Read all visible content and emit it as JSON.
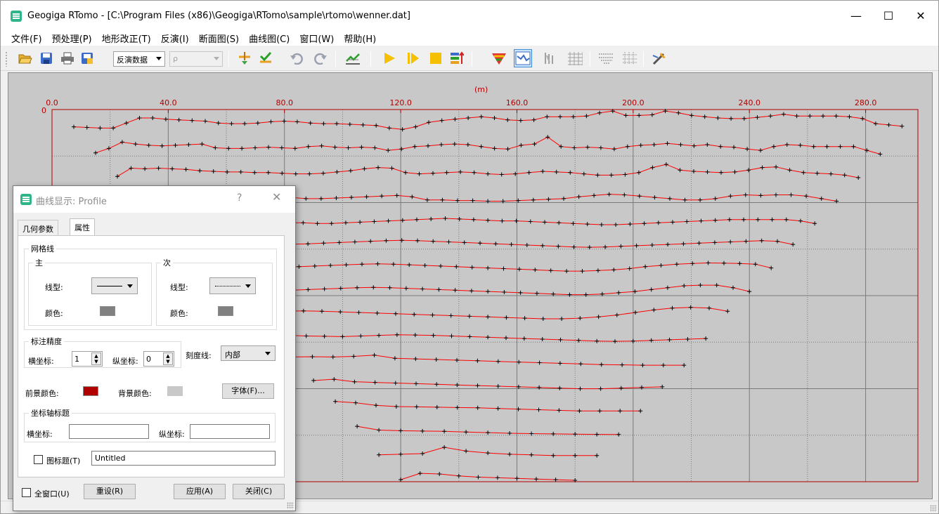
{
  "window": {
    "title": "Geogiga RTomo - [C:\\Program Files (x86)\\Geogiga\\RTomo\\sample\\rtomo\\wenner.dat]"
  },
  "menu": [
    "文件(F)",
    "预处理(P)",
    "地形改正(T)",
    "反演(I)",
    "断面图(S)",
    "曲线图(C)",
    "窗口(W)",
    "帮助(H)"
  ],
  "toolbar": {
    "data_combo": "反演数据",
    "rho_combo": "ρ",
    "icons": [
      "open-icon",
      "save-icon",
      "print-icon",
      "export-icon",
      "filter-icon",
      "check-icon",
      "undo-icon",
      "redo-icon",
      "profile-edit-icon",
      "play-icon",
      "step-icon",
      "stop-icon",
      "sort-icon",
      "topo-icon",
      "curve-icon",
      "section-icon",
      "grid-icon",
      "model-icon",
      "mesh-icon",
      "tool-icon"
    ]
  },
  "chart": {
    "axis_unit": "(m)",
    "x_ticks": [
      "0.0",
      "40.0",
      "80.0",
      "120.0",
      "160.0",
      "200.0",
      "240.0",
      "280.0"
    ],
    "y_tick": "0",
    "x_range": [
      0,
      298
    ],
    "line_color": "#ff0000",
    "frame_color": "#b00000",
    "background_color": "#c8c8c8",
    "marker": "+"
  },
  "chart_data": {
    "type": "line",
    "title": "",
    "xlabel": "(m)",
    "ylabel": "",
    "xlim": [
      0,
      298
    ],
    "series": [
      {
        "x_start": 7.5,
        "x_end": 292.5,
        "values": [
          0.3,
          0.25,
          0.2,
          0.2,
          0.6,
          1.0,
          1.0,
          0.9,
          0.85,
          0.8,
          0.75,
          0.6,
          0.55,
          0.55,
          0.6,
          0.7,
          0.75,
          0.7,
          0.6,
          0.55,
          0.55,
          0.5,
          0.45,
          0.4,
          0.2,
          0.1,
          0.3,
          0.65,
          0.8,
          0.9,
          1.0,
          1.1,
          1.0,
          0.85,
          0.8,
          0.85,
          1.1,
          1.1,
          1.1,
          1.15,
          1.4,
          1.55,
          1.2,
          1.2,
          1.25,
          1.55,
          1.4,
          1.2,
          1.1,
          1.0,
          0.95,
          0.95,
          1.05,
          1.15,
          1.3,
          1.15,
          1.15,
          1.15,
          1.15,
          1.1,
          0.95,
          0.55,
          0.45,
          0.35
        ]
      },
      {
        "x_start": 15.0,
        "x_end": 285.0,
        "values": [
          0.1,
          0.45,
          0.95,
          0.8,
          0.7,
          0.65,
          0.7,
          0.75,
          0.8,
          0.5,
          0.45,
          0.45,
          0.5,
          0.55,
          0.5,
          0.45,
          0.6,
          0.65,
          0.55,
          0.5,
          0.55,
          0.5,
          0.3,
          0.4,
          0.6,
          0.65,
          0.75,
          0.8,
          0.75,
          0.6,
          0.45,
          0.4,
          0.7,
          0.8,
          1.35,
          0.6,
          0.5,
          0.55,
          0.5,
          0.4,
          0.6,
          0.7,
          0.75,
          0.85,
          0.75,
          0.65,
          0.75,
          0.6,
          0.55,
          0.4,
          0.3,
          0.6,
          0.75,
          0.7,
          0.6,
          0.6,
          0.6,
          0.6,
          0.3,
          0.0
        ]
      },
      {
        "x_start": 22.5,
        "x_end": 277.5,
        "values": [
          0.1,
          0.75,
          0.7,
          0.75,
          0.7,
          0.65,
          0.55,
          0.5,
          0.45,
          0.45,
          0.4,
          0.4,
          0.35,
          0.3,
          0.3,
          0.35,
          0.45,
          0.55,
          0.7,
          0.8,
          0.75,
          0.4,
          0.3,
          0.35,
          0.4,
          0.45,
          0.4,
          0.3,
          0.25,
          0.3,
          0.4,
          0.5,
          0.45,
          0.4,
          0.3,
          0.2,
          0.2,
          0.25,
          0.4,
          0.8,
          1.05,
          0.6,
          0.5,
          0.45,
          0.4,
          0.45,
          0.6,
          0.8,
          0.85,
          0.6,
          0.4,
          0.35,
          0.3,
          0.2,
          0.0
        ]
      },
      {
        "x_start": 30.0,
        "x_end": 270.0,
        "values": [
          0.75,
          0.6,
          0.55,
          0.55,
          0.5,
          0.45,
          0.4,
          0.4,
          0.35,
          0.3,
          0.3,
          0.2,
          0.2,
          0.25,
          0.3,
          0.35,
          0.4,
          0.45,
          0.35,
          0.1,
          0.1,
          0.05,
          0.05,
          0.0,
          0.0,
          0.05,
          0.1,
          0.15,
          0.2,
          0.35,
          0.45,
          0.55,
          0.5,
          0.4,
          0.3,
          0.2,
          0.1,
          0.1,
          0.2,
          0.4,
          0.5,
          0.45,
          0.5,
          0.5,
          0.4,
          0.2,
          0.0
        ]
      },
      {
        "x_start": 37.5,
        "x_end": 262.5,
        "values": [
          0.5,
          0.45,
          0.4,
          0.35,
          0.3,
          0.25,
          0.25,
          0.2,
          0.2,
          0.15,
          0.15,
          0.1,
          0.1,
          0.15,
          0.2,
          0.25,
          0.3,
          0.35,
          0.4,
          0.45,
          0.5,
          0.45,
          0.4,
          0.35,
          0.3,
          0.3,
          0.25,
          0.2,
          0.15,
          0.1,
          0.05,
          0.0,
          0.0,
          0.05,
          0.1,
          0.15,
          0.2,
          0.25,
          0.3,
          0.35,
          0.4,
          0.4,
          0.4,
          0.4,
          0.4,
          0.3,
          0.1
        ]
      },
      {
        "x_start": 45.0,
        "x_end": 255.0,
        "values": [
          0.4,
          0.38,
          0.35,
          0.32,
          0.3,
          0.28,
          0.3,
          0.32,
          0.35,
          0.4,
          0.45,
          0.5,
          0.55,
          0.6,
          0.62,
          0.6,
          0.55,
          0.5,
          0.45,
          0.4,
          0.35,
          0.3,
          0.25,
          0.2,
          0.15,
          0.1,
          0.08,
          0.1,
          0.15,
          0.2,
          0.25,
          0.3,
          0.35,
          0.4,
          0.45,
          0.5,
          0.55,
          0.6,
          0.55,
          0.3
        ]
      },
      {
        "x_start": 52.5,
        "x_end": 247.5,
        "values": [
          0.5,
          0.45,
          0.4,
          0.35,
          0.3,
          0.35,
          0.4,
          0.45,
          0.5,
          0.55,
          0.6,
          0.62,
          0.6,
          0.55,
          0.5,
          0.45,
          0.4,
          0.35,
          0.3,
          0.25,
          0.2,
          0.15,
          0.1,
          0.05,
          0.05,
          0.1,
          0.15,
          0.25,
          0.4,
          0.5,
          0.6,
          0.65,
          0.7,
          0.68,
          0.65,
          0.6,
          0.3
        ]
      },
      {
        "x_start": 60.0,
        "x_end": 240.0,
        "values": [
          0.6,
          0.55,
          0.5,
          0.45,
          0.4,
          0.45,
          0.5,
          0.55,
          0.6,
          0.62,
          0.6,
          0.55,
          0.5,
          0.45,
          0.4,
          0.35,
          0.3,
          0.25,
          0.2,
          0.15,
          0.1,
          0.05,
          0.05,
          0.1,
          0.2,
          0.3,
          0.45,
          0.6,
          0.75,
          0.8,
          0.8,
          0.6,
          0.3
        ]
      },
      {
        "x_start": 67.5,
        "x_end": 232.5,
        "values": [
          0.5,
          0.55,
          0.6,
          0.62,
          0.6,
          0.55,
          0.5,
          0.45,
          0.4,
          0.35,
          0.3,
          0.25,
          0.2,
          0.15,
          0.1,
          0.05,
          0.0,
          0.0,
          0.05,
          0.15,
          0.3,
          0.5,
          0.7,
          0.85,
          0.9,
          0.85,
          0.6
        ]
      },
      {
        "x_start": 75.0,
        "x_end": 225.0,
        "values": [
          0.6,
          0.55,
          0.5,
          0.48,
          0.45,
          0.5,
          0.55,
          0.6,
          0.58,
          0.55,
          0.5,
          0.45,
          0.4,
          0.35,
          0.3,
          0.25,
          0.2,
          0.15,
          0.1,
          0.08,
          0.1,
          0.15,
          0.2,
          0.25,
          0.3
        ]
      },
      {
        "x_start": 82.5,
        "x_end": 217.5,
        "values": [
          0.7,
          0.72,
          0.7,
          0.75,
          0.85,
          0.6,
          0.55,
          0.5,
          0.45,
          0.4,
          0.35,
          0.3,
          0.25,
          0.2,
          0.15,
          0.1,
          0.08,
          0.05,
          0.05,
          0.05
        ]
      },
      {
        "x_start": 90.0,
        "x_end": 210.0,
        "values": [
          0.7,
          0.8,
          0.6,
          0.55,
          0.5,
          0.45,
          0.4,
          0.35,
          0.3,
          0.25,
          0.2,
          0.15,
          0.1,
          0.05,
          0.05,
          0.1,
          0.15,
          0.2
        ]
      },
      {
        "x_start": 97.5,
        "x_end": 202.5,
        "values": [
          0.9,
          0.8,
          0.6,
          0.5,
          0.48,
          0.45,
          0.42,
          0.4,
          0.35,
          0.3,
          0.25,
          0.2,
          0.15,
          0.15,
          0.15,
          0.15
        ]
      },
      {
        "x_start": 105.0,
        "x_end": 195.0,
        "values": [
          0.8,
          0.5,
          0.45,
          0.42,
          0.4,
          0.35,
          0.3,
          0.25,
          0.22,
          0.2,
          0.18,
          0.16,
          0.15
        ]
      },
      {
        "x_start": 112.5,
        "x_end": 187.5,
        "values": [
          0.4,
          0.45,
          0.5,
          1.0,
          0.7,
          0.55,
          0.45,
          0.4,
          0.35,
          0.35,
          0.35
        ]
      },
      {
        "x_start": 120.0,
        "x_end": 180.0,
        "values": [
          0.3,
          0.8,
          0.75,
          0.6,
          0.5,
          0.45,
          0.4,
          0.35,
          0.3,
          0.25
        ]
      }
    ]
  },
  "dialog": {
    "title": "曲线显示: Profile",
    "help": "?",
    "close": "✕",
    "tabs": [
      "几何参数",
      "属性"
    ],
    "grid_group": "网格线",
    "major_group": "主",
    "minor_group": "次",
    "line_type_label": "线型:",
    "color_label": "颜色:",
    "major_color": "#808080",
    "minor_color": "#808080",
    "precision_group": "标注精度",
    "x_label": "横坐标:",
    "y_label": "纵坐标:",
    "x_precision": "1",
    "y_precision": "0",
    "tick_label": "刻度线:",
    "tick_value": "内部",
    "fg_label": "前景颜色:",
    "fg_color": "#b00000",
    "bg_label": "背景颜色:",
    "bg_color": "#c8c8c8",
    "font_button": "字体(F)...",
    "axis_title_group": "坐标轴标题",
    "x_title_label": "横坐标:",
    "y_title_label": "纵坐标:",
    "x_title_value": "",
    "y_title_value": "",
    "chart_title_label": "图标题(T)",
    "chart_title_value": "Untitled",
    "all_windows_label": "全窗口(U)",
    "reset_button": "重设(R)",
    "apply_button": "应用(A)",
    "close_button": "关闭(C)"
  }
}
